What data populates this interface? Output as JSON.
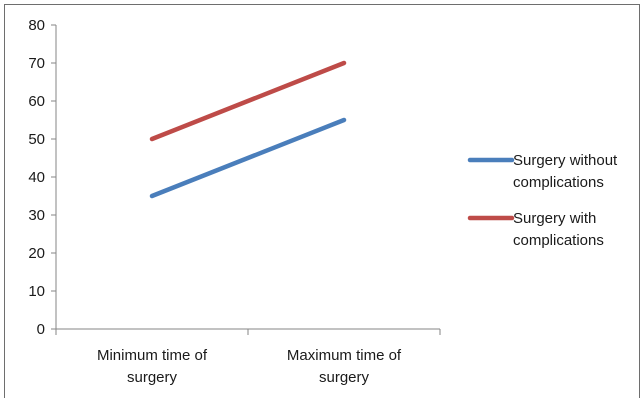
{
  "chart_data": {
    "type": "line",
    "categories": [
      "Minimum time of surgery",
      "Maximum time of surgery"
    ],
    "category_lines": [
      [
        "Minimum time of",
        "surgery"
      ],
      [
        "Maximum time of",
        "surgery"
      ]
    ],
    "series": [
      {
        "name": "Surgery without complications",
        "legend_lines": [
          "Surgery without",
          "complications"
        ],
        "values": [
          35,
          55
        ],
        "color": "#4a7ebb"
      },
      {
        "name": "Surgery with complications",
        "legend_lines": [
          "Surgery with",
          "complications"
        ],
        "values": [
          50,
          70
        ],
        "color": "#be4b48"
      }
    ],
    "ylim": [
      0,
      80
    ],
    "yticks": [
      0,
      10,
      20,
      30,
      40,
      50,
      60,
      70,
      80
    ],
    "grid": false,
    "legend_position": "right"
  }
}
